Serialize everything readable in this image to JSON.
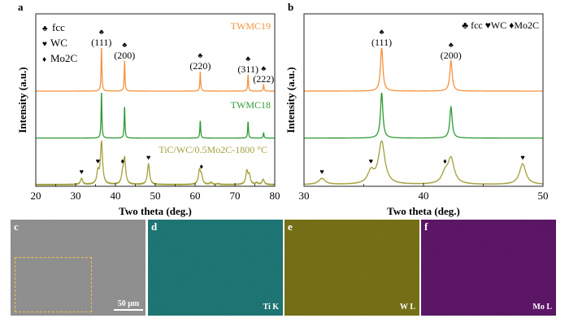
{
  "chart_data": [
    {
      "panel": "a",
      "type": "line",
      "xlabel": "Two theta (deg.)",
      "ylabel": "Intensity (a.u.)",
      "xlim": [
        20,
        80
      ],
      "xticks": [
        "20",
        "30",
        "40",
        "50",
        "60",
        "70",
        "80"
      ],
      "legend": [
        {
          "symbol": "♣",
          "label": "fcc"
        },
        {
          "symbol": "♥",
          "label": "WC"
        },
        {
          "symbol": "♦",
          "label": "Mo2C"
        }
      ],
      "series": [
        {
          "name": "TWMC19",
          "color": "#f7913d",
          "peaks": [
            [
              36.5,
              100
            ],
            [
              42.3,
              70
            ],
            [
              61.3,
              45
            ],
            [
              73.3,
              38
            ],
            [
              77.2,
              15
            ]
          ],
          "annotations": [
            {
              "x": 36.5,
              "symbol": "♣",
              "label": "(111)"
            },
            {
              "x": 42.3,
              "symbol": "♣",
              "label": "(200)"
            },
            {
              "x": 61.3,
              "symbol": "♣",
              "label": "(220)"
            },
            {
              "x": 73.3,
              "symbol": "♣",
              "label": "(311)"
            },
            {
              "x": 77.2,
              "symbol": "♣",
              "label": "(222)"
            }
          ]
        },
        {
          "name": "TWMC18",
          "color": "#2e9a35",
          "peaks": [
            [
              36.5,
              105
            ],
            [
              42.3,
              72
            ],
            [
              61.3,
              40
            ],
            [
              73.3,
              38
            ],
            [
              77.2,
              12
            ]
          ]
        },
        {
          "name": "TiC/WC/0.5Mo2C-1800 °C",
          "color": "#a3a03a",
          "peaks": [
            [
              31.5,
              14
            ],
            [
              35.6,
              28
            ],
            [
              36.5,
              98
            ],
            [
              41.8,
              22
            ],
            [
              42.3,
              58
            ],
            [
              48.3,
              48
            ],
            [
              61.1,
              32
            ],
            [
              61.6,
              18
            ],
            [
              64.0,
              5
            ],
            [
              65.8,
              2
            ],
            [
              73.0,
              30
            ],
            [
              73.6,
              20
            ],
            [
              75.5,
              4
            ],
            [
              77.1,
              12
            ]
          ],
          "markers": [
            {
              "x": 31.5,
              "symbol": "♥"
            },
            {
              "x": 35.6,
              "symbol": "♥"
            },
            {
              "x": 41.8,
              "symbol": "♦"
            },
            {
              "x": 48.3,
              "symbol": "♥"
            },
            {
              "x": 61.6,
              "symbol": "♦"
            }
          ]
        }
      ]
    },
    {
      "panel": "b",
      "type": "line",
      "xlabel": "Two theta (deg.)",
      "ylabel": "Intensity (a.u.)",
      "xlim": [
        30,
        50
      ],
      "xticks": [
        "30",
        "40",
        "50"
      ],
      "legend_text": "♣ fcc ♥WC ♦Mo2C",
      "annotations": [
        {
          "x": 36.5,
          "symbol": "♣",
          "label": "(111)"
        },
        {
          "x": 42.3,
          "symbol": "♣",
          "label": "(200)"
        }
      ],
      "markers": [
        {
          "x": 31.5,
          "symbol": "♥"
        },
        {
          "x": 35.6,
          "symbol": "♥"
        },
        {
          "x": 41.8,
          "symbol": "♦"
        },
        {
          "x": 48.3,
          "symbol": "♥"
        }
      ]
    }
  ],
  "maps": {
    "c": {
      "label": "c",
      "scale": "50 μm",
      "color": "#8c8c8c"
    },
    "d": {
      "label": "d",
      "element": "Ti K",
      "color": "#1f7a78"
    },
    "e": {
      "label": "e",
      "element": "W L",
      "color": "#7a7417"
    },
    "f": {
      "label": "f",
      "element": "Mo L",
      "color": "#5f176a"
    }
  }
}
